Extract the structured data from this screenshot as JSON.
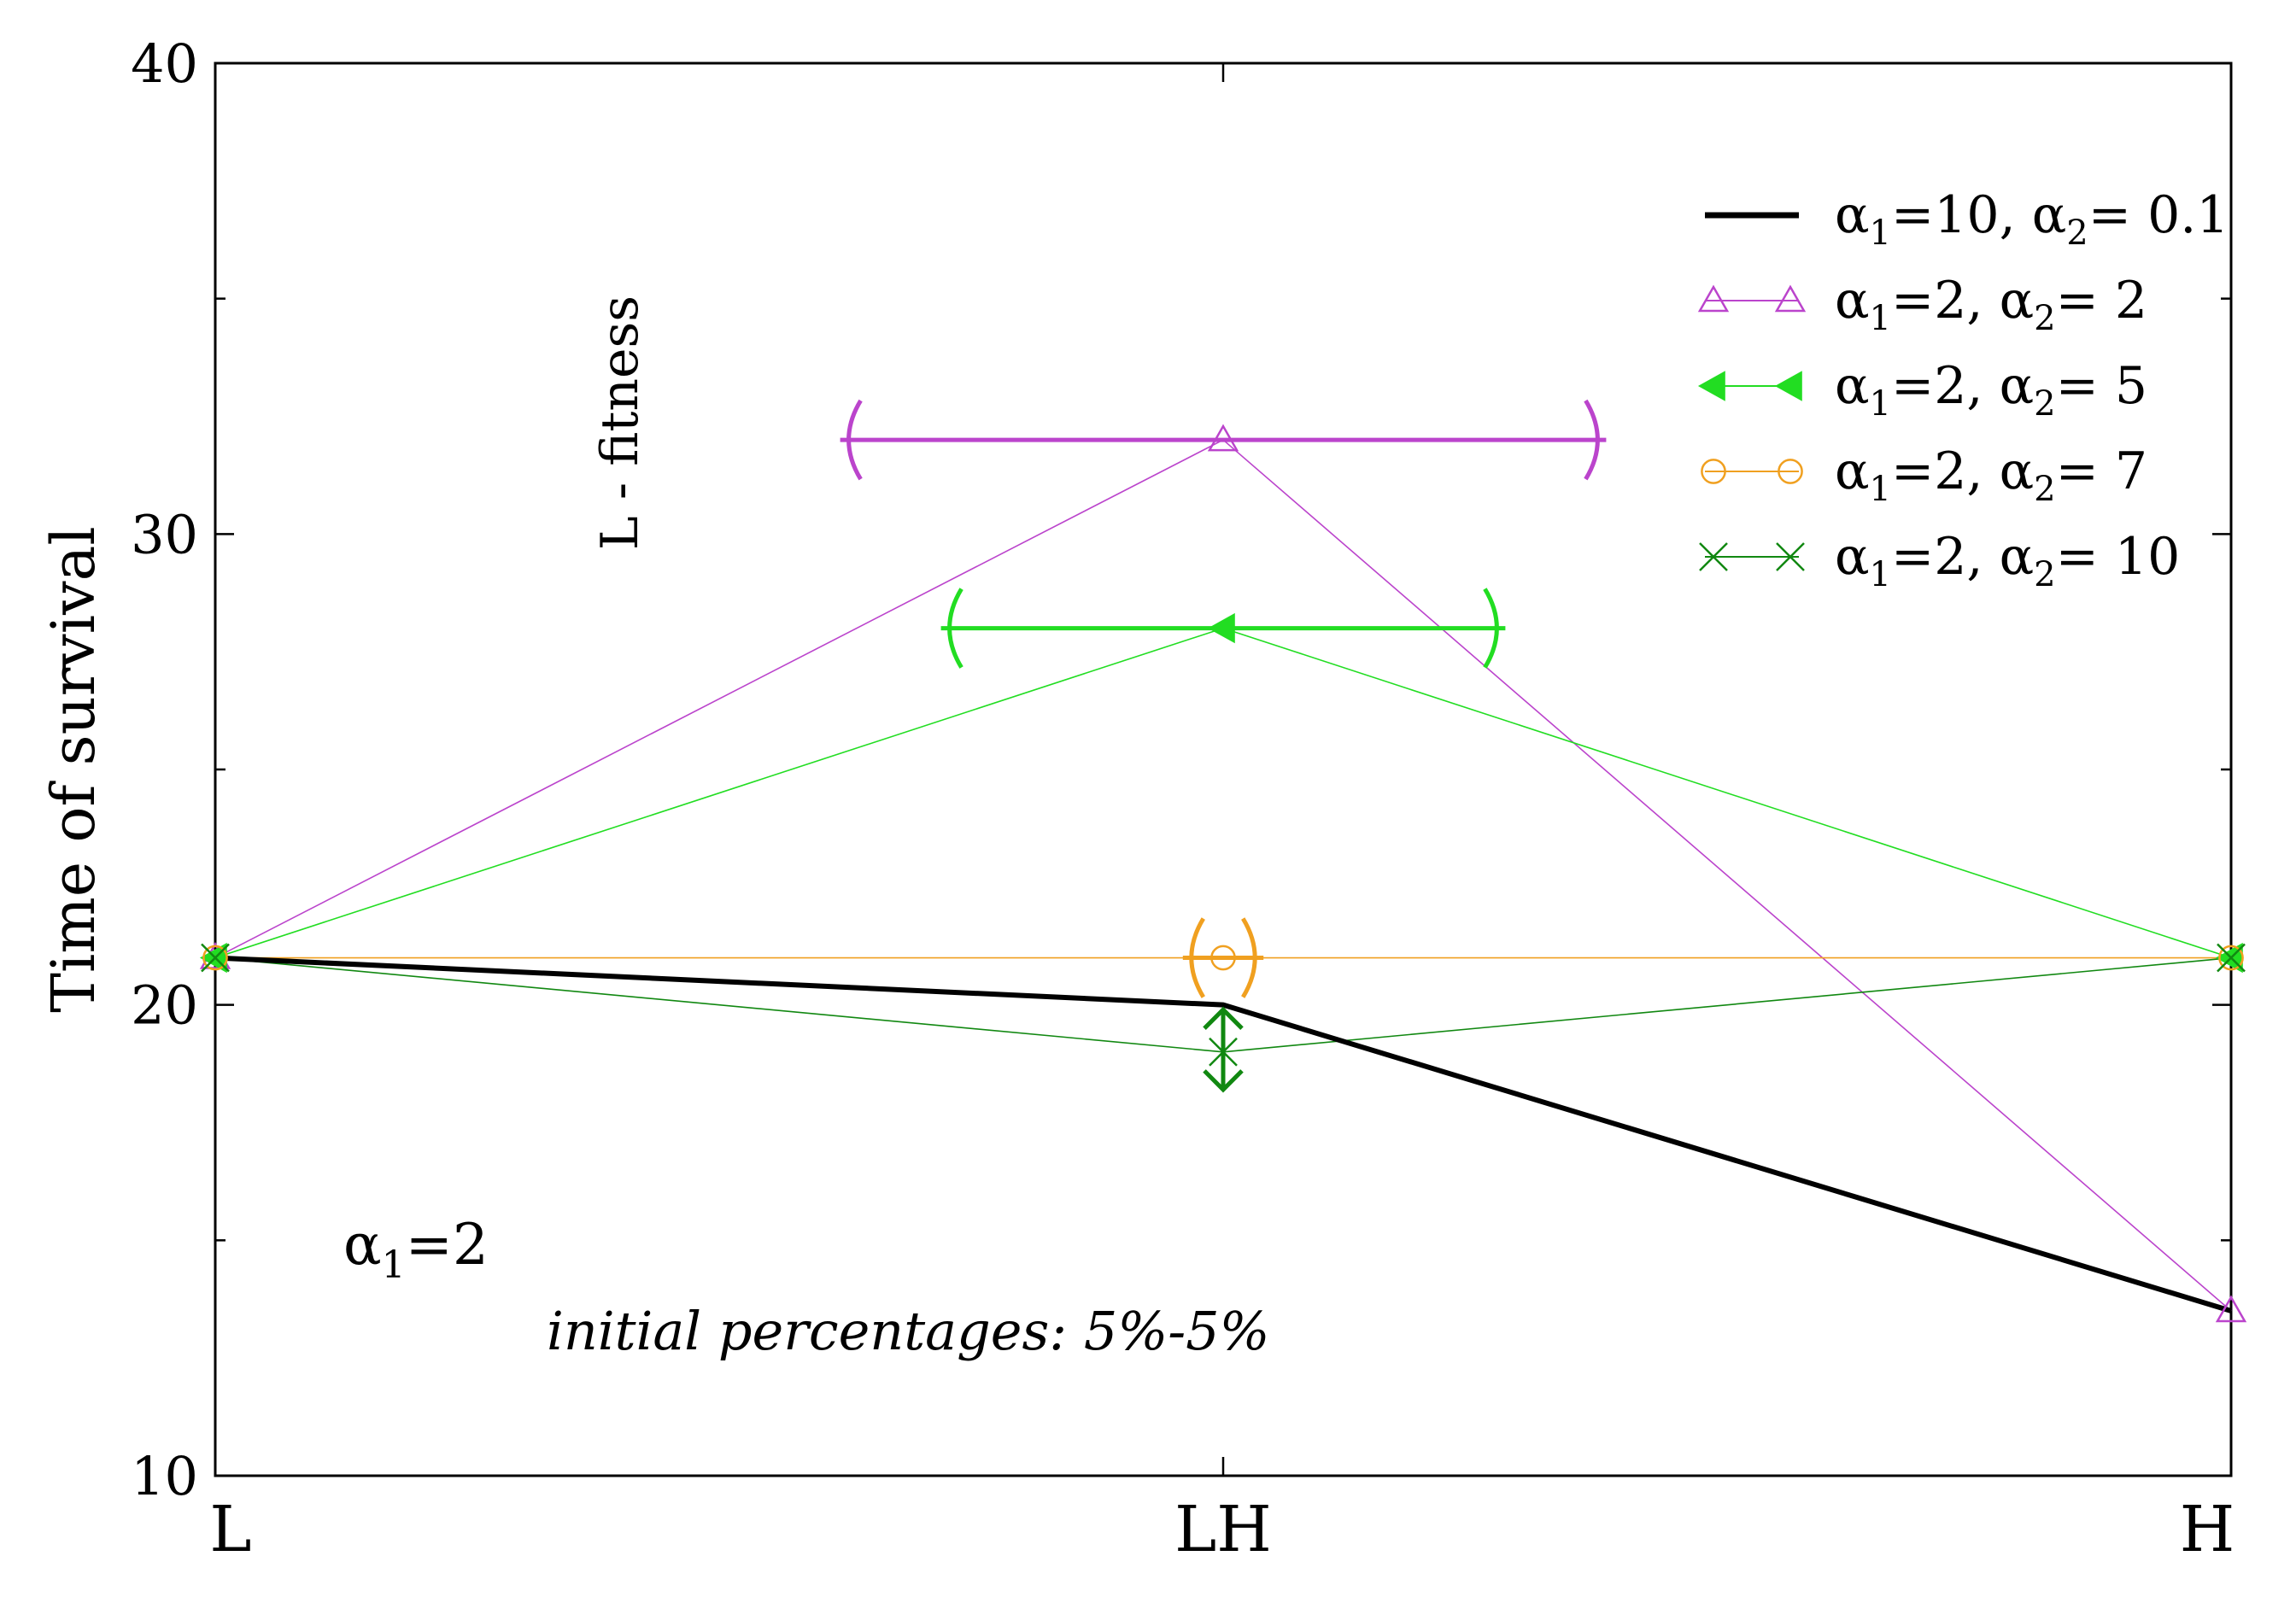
{
  "chart_data": {
    "type": "line",
    "ylabel": "Time of survival",
    "xlabel": "",
    "categories": [
      "L",
      "LH",
      "H"
    ],
    "ylim": [
      10,
      40
    ],
    "yticks": [
      10,
      20,
      30,
      40
    ],
    "grid": false,
    "legend_position": "top-right",
    "series": [
      {
        "name_sub1": "1",
        "name_sub2": "2",
        "name_base": "α",
        "label_a": "=10, ",
        "label_b": "= 0.1",
        "values": [
          21,
          20,
          13.5
        ],
        "color": "#000000",
        "marker": "none",
        "width": 6
      },
      {
        "name_base": "α",
        "name_sub1": "1",
        "name_sub2": "2",
        "label_a": "=2, ",
        "label_b": "= 2",
        "values": [
          21,
          32,
          13.5
        ],
        "color": "#bb44cc",
        "marker": "triangle-up-open",
        "width": 1.6
      },
      {
        "name_base": "α",
        "name_sub1": "1",
        "name_sub2": "2",
        "label_a": "=2, ",
        "label_b": "= 5",
        "values": [
          21,
          28,
          21
        ],
        "color": "#22dd22",
        "marker": "triangle-left-filled",
        "width": 1.6
      },
      {
        "name_base": "α",
        "name_sub1": "1",
        "name_sub2": "2",
        "label_a": "=2, ",
        "label_b": "= 7",
        "values": [
          21,
          21,
          21
        ],
        "color": "#f0a020",
        "marker": "circle-open",
        "width": 1.6
      },
      {
        "name_base": "α",
        "name_sub1": "1",
        "name_sub2": "2",
        "label_a": "=2, ",
        "label_b": "= 10",
        "values": [
          21,
          19,
          21
        ],
        "color": "#118811",
        "marker": "x",
        "width": 1.6
      }
    ],
    "error_bars": [
      {
        "series": 1,
        "direction": "horizontal",
        "category": 1,
        "value": 32,
        "from": 0.62,
        "to": 1.38
      },
      {
        "series": 2,
        "direction": "horizontal",
        "category": 1,
        "value": 28,
        "from": 0.72,
        "to": 1.28
      },
      {
        "series": 3,
        "direction": "horizontal",
        "category": 1,
        "value": 21,
        "from": 0.96,
        "to": 1.04
      },
      {
        "series": 4,
        "direction": "vertical",
        "category": 1,
        "value": 19,
        "low": 18.2,
        "high": 19.9
      }
    ],
    "annotations": {
      "vertical_label": "L - fitness",
      "alpha_base": "α",
      "alpha_sub": "1",
      "alpha_value": "=2",
      "note": "initial percentages: 5%-5%"
    }
  }
}
